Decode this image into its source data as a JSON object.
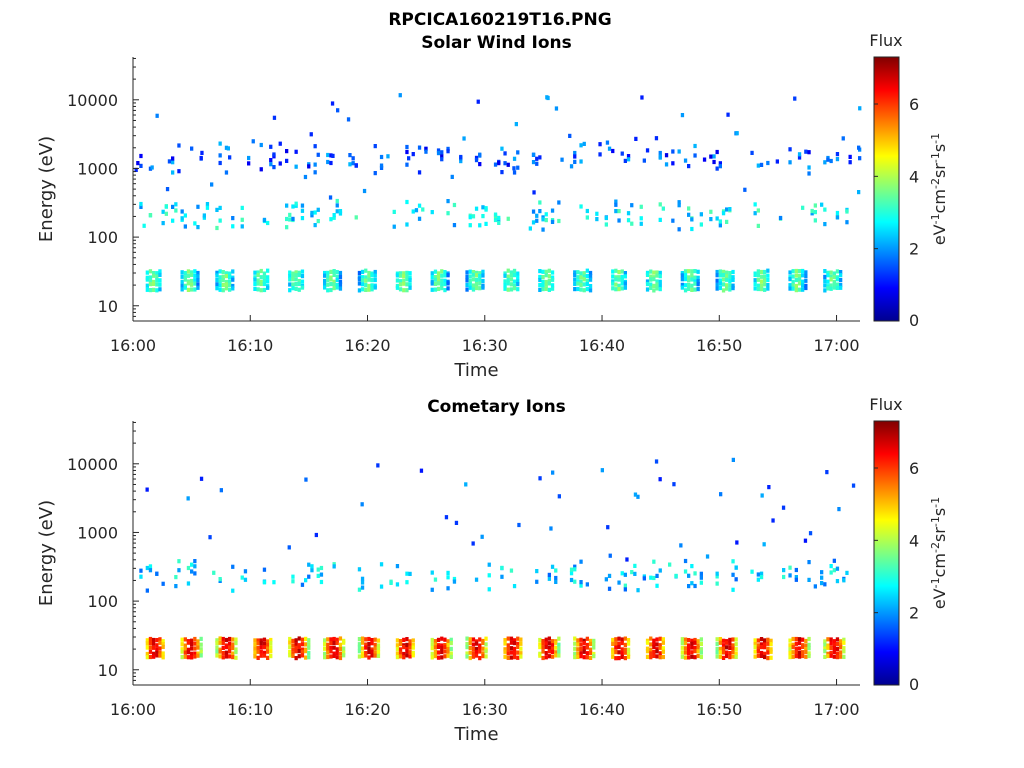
{
  "figure_title": "RPCICA160219T16.PNG",
  "chart_data": [
    {
      "type": "heatmap",
      "title": "Solar Wind Ions",
      "xlabel": "Time",
      "ylabel": "Energy (eV)",
      "x_ticks": [
        "16:00",
        "16:10",
        "16:20",
        "16:30",
        "16:40",
        "16:50",
        "17:00"
      ],
      "y_ticks": [
        "10",
        "100",
        "1000",
        "10000"
      ],
      "y_scale": "log",
      "xlim": [
        "16:00",
        "17:02"
      ],
      "ylim": [
        6,
        42000
      ],
      "colorbar": {
        "title": "Flux",
        "label_base": "eV",
        "label_html": "eV-1cm-2sr-1s-1",
        "ticks": [
          "0",
          "2",
          "4",
          "6"
        ],
        "range": [
          0,
          7.3
        ]
      },
      "bands": [
        {
          "energy": 25,
          "flux": 3.2,
          "cycle_period_min": 3.05,
          "duration_min": 1.5
        },
        {
          "energy": 230,
          "flux": 2.6,
          "sparse": true
        },
        {
          "energy": 1500,
          "flux": 1.5,
          "sparse": true
        }
      ]
    },
    {
      "type": "heatmap",
      "title": "Cometary Ions",
      "xlabel": "Time",
      "ylabel": "Energy (eV)",
      "x_ticks": [
        "16:00",
        "16:10",
        "16:20",
        "16:30",
        "16:40",
        "16:50",
        "17:00"
      ],
      "y_ticks": [
        "10",
        "100",
        "1000",
        "10000"
      ],
      "y_scale": "log",
      "xlim": [
        "16:00",
        "17:02"
      ],
      "ylim": [
        6,
        42000
      ],
      "colorbar": {
        "title": "Flux",
        "label_base": "eV",
        "label_html": "eV-1cm-2sr-1s-1",
        "ticks": [
          "0",
          "2",
          "4",
          "6"
        ],
        "range": [
          0,
          7.3
        ]
      },
      "bands": [
        {
          "energy": 22,
          "flux": 6.0,
          "cycle_period_min": 3.05,
          "duration_min": 1.8
        },
        {
          "energy": 250,
          "flux": 2.4,
          "sparse": true
        }
      ]
    }
  ]
}
